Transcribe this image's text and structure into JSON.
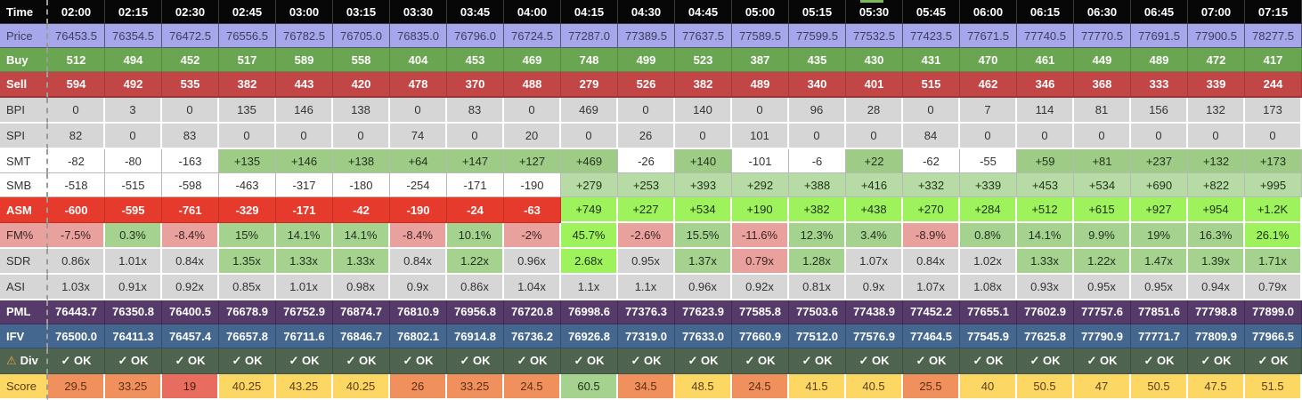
{
  "palette": {
    "header_bg": "#070707",
    "price_bg": "#a6a6ea",
    "buy_bg": "#6aa551",
    "sell_bg": "#c24646",
    "neutral_gray": "#d6d6d6",
    "green_smt": "#9ecb86",
    "green_smb": "#b7dba4",
    "green_mid": "#a5d28f",
    "green_bright": "#9ef35c",
    "pink_negative": "#e9a19e",
    "asm_red": "#e53a2c",
    "pml_purple": "#553a6a",
    "ifv_blue": "#44678f",
    "div_green": "#4e6350",
    "score_yellow": "#fcd763",
    "score_orange": "#f0915d",
    "score_salmon": "#e96d5e",
    "warning_icon": "#e8a33d",
    "top_marker": "#7cb95a"
  },
  "table": {
    "corner_label": "Time",
    "columns": [
      "02:00",
      "02:15",
      "02:30",
      "02:45",
      "03:00",
      "03:15",
      "03:30",
      "03:45",
      "04:00",
      "04:15",
      "04:30",
      "04:45",
      "05:00",
      "05:15",
      "05:30",
      "05:45",
      "06:00",
      "06:15",
      "06:30",
      "06:45",
      "07:00",
      "07:15"
    ],
    "rows": [
      {
        "id": "price",
        "label": "Price",
        "label_class": "price",
        "cell_class": "price",
        "cells": [
          "76453.5",
          "76354.5",
          "76472.5",
          "76556.5",
          "76782.5",
          "76705.0",
          "76835.0",
          "76796.0",
          "76724.5",
          "77287.0",
          "77389.5",
          "77637.5",
          "77589.5",
          "77599.5",
          "77532.5",
          "77423.5",
          "77671.5",
          "77740.5",
          "77770.5",
          "77691.5",
          "77900.5",
          "78277.5"
        ]
      },
      {
        "id": "buy",
        "label": "Buy",
        "label_class": "buy",
        "cell_class": "buy",
        "cells": [
          "512",
          "494",
          "452",
          "517",
          "589",
          "558",
          "404",
          "453",
          "469",
          "748",
          "499",
          "523",
          "387",
          "435",
          "430",
          "431",
          "470",
          "461",
          "449",
          "489",
          "472",
          "417"
        ]
      },
      {
        "id": "sell",
        "label": "Sell",
        "label_class": "sell",
        "cell_class": "sell",
        "cells": [
          "594",
          "492",
          "535",
          "382",
          "443",
          "420",
          "478",
          "370",
          "488",
          "279",
          "526",
          "382",
          "489",
          "340",
          "401",
          "515",
          "462",
          "346",
          "368",
          "333",
          "339",
          "244"
        ]
      },
      {
        "id": "bpi",
        "label": "BPI",
        "label_class": "gray",
        "cell_class": "gray",
        "cells": [
          "0",
          "3",
          "0",
          "135",
          "146",
          "138",
          "0",
          "83",
          "0",
          "469",
          "0",
          "140",
          "0",
          "96",
          "28",
          "0",
          "7",
          "114",
          "81",
          "156",
          "132",
          "173"
        ]
      },
      {
        "id": "spi",
        "label": "SPI",
        "label_class": "gray",
        "cell_class": "gray",
        "cells": [
          "82",
          "0",
          "83",
          "0",
          "0",
          "0",
          "74",
          "0",
          "20",
          "0",
          "26",
          "0",
          "101",
          "0",
          "0",
          "84",
          "0",
          "0",
          "0",
          "0",
          "0",
          "0"
        ]
      },
      {
        "id": "smt",
        "label": "SMT",
        "label_class": "white",
        "cell_class": "white",
        "cells": [
          "-82",
          "-80",
          "-163",
          "+135",
          "+146",
          "+138",
          "+64",
          "+147",
          "+127",
          "+469",
          "-26",
          "+140",
          "-101",
          "-6",
          "+22",
          "-62",
          "-55",
          "+59",
          "+81",
          "+237",
          "+132",
          "+173"
        ],
        "cell_classes": [
          "white",
          "white",
          "white",
          "g1",
          "g1",
          "g1",
          "g1",
          "g1",
          "g1",
          "g1",
          "white",
          "g1",
          "white",
          "white",
          "g1",
          "white",
          "white",
          "g1",
          "g1",
          "g1",
          "g1",
          "g1"
        ]
      },
      {
        "id": "smb",
        "label": "SMB",
        "label_class": "white",
        "cell_class": "white",
        "cells": [
          "-518",
          "-515",
          "-598",
          "-463",
          "-317",
          "-180",
          "-254",
          "-171",
          "-190",
          "+279",
          "+253",
          "+393",
          "+292",
          "+388",
          "+416",
          "+332",
          "+339",
          "+453",
          "+534",
          "+690",
          "+822",
          "+995"
        ],
        "cell_classes": [
          "white",
          "white",
          "white",
          "white",
          "white",
          "white",
          "white",
          "white",
          "white",
          "g2",
          "g2",
          "g2",
          "g2",
          "g2",
          "g2",
          "g2",
          "g2",
          "g2",
          "g2",
          "g2",
          "g2",
          "g2"
        ]
      },
      {
        "id": "asm",
        "label": "ASM",
        "label_class": "red",
        "cell_class": "red",
        "cells": [
          "-600",
          "-595",
          "-761",
          "-329",
          "-171",
          "-42",
          "-190",
          "-24",
          "-63",
          "+749",
          "+227",
          "+534",
          "+190",
          "+382",
          "+438",
          "+270",
          "+284",
          "+512",
          "+615",
          "+927",
          "+954",
          "+1.2K"
        ],
        "cell_classes": [
          "red",
          "red",
          "red",
          "red",
          "red",
          "red",
          "red",
          "red",
          "red",
          "bright",
          "bright",
          "bright",
          "bright",
          "bright",
          "bright",
          "bright",
          "bright",
          "bright",
          "bright",
          "bright",
          "bright",
          "bright"
        ]
      },
      {
        "id": "fmpct",
        "label": "FM%",
        "label_class": "pink",
        "cell_class": "g3",
        "cells": [
          "-7.5%",
          "0.3%",
          "-8.4%",
          "15%",
          "14.1%",
          "14.1%",
          "-8.4%",
          "10.1%",
          "-2%",
          "45.7%",
          "-2.6%",
          "15.5%",
          "-11.6%",
          "12.3%",
          "3.4%",
          "-8.9%",
          "0.8%",
          "14.1%",
          "9.9%",
          "19%",
          "16.3%",
          "26.1%"
        ],
        "cell_classes": [
          "pink",
          "g3",
          "pink",
          "g3",
          "g3",
          "g3",
          "pink",
          "g3",
          "pink",
          "bright",
          "pink",
          "g3",
          "pink",
          "g3",
          "g3",
          "pink",
          "g3",
          "g3",
          "g3",
          "g3",
          "g3",
          "bright"
        ]
      },
      {
        "id": "sdr",
        "label": "SDR",
        "label_class": "gray",
        "cell_class": "gray",
        "cells": [
          "0.86x",
          "1.01x",
          "0.84x",
          "1.35x",
          "1.33x",
          "1.33x",
          "0.84x",
          "1.22x",
          "0.96x",
          "2.68x",
          "0.95x",
          "1.37x",
          "0.79x",
          "1.28x",
          "1.07x",
          "0.84x",
          "1.02x",
          "1.33x",
          "1.22x",
          "1.47x",
          "1.39x",
          "1.71x"
        ],
        "cell_classes": [
          "gray",
          "gray",
          "gray",
          "g3",
          "g3",
          "g3",
          "gray",
          "g3",
          "gray",
          "bright",
          "gray",
          "g3",
          "pink",
          "g3",
          "gray",
          "gray",
          "gray",
          "g3",
          "g3",
          "g3",
          "g3",
          "g3"
        ]
      },
      {
        "id": "asi",
        "label": "ASI",
        "label_class": "gray",
        "cell_class": "gray",
        "cells": [
          "1.03x",
          "0.91x",
          "0.92x",
          "0.85x",
          "1.01x",
          "0.98x",
          "0.9x",
          "0.86x",
          "1.04x",
          "1.1x",
          "1.1x",
          "0.96x",
          "0.92x",
          "0.81x",
          "0.9x",
          "1.07x",
          "1.08x",
          "0.93x",
          "0.95x",
          "0.95x",
          "0.94x",
          "0.79x"
        ]
      },
      {
        "id": "pml",
        "label": "PML",
        "label_class": "purple",
        "cell_class": "purple",
        "cells": [
          "76443.7",
          "76350.8",
          "76400.5",
          "76678.9",
          "76752.9",
          "76874.7",
          "76810.9",
          "76956.8",
          "76720.8",
          "76998.6",
          "77376.3",
          "77623.9",
          "77585.8",
          "77503.6",
          "77438.9",
          "77452.2",
          "77655.1",
          "77602.9",
          "77757.6",
          "77851.6",
          "77798.8",
          "77899.0"
        ]
      },
      {
        "id": "ifv",
        "label": "IFV",
        "label_class": "blue",
        "cell_class": "blue",
        "cells": [
          "76500.0",
          "76411.3",
          "76457.4",
          "76657.8",
          "76711.6",
          "76846.7",
          "76802.1",
          "76914.8",
          "76736.2",
          "76926.8",
          "77319.0",
          "77633.0",
          "77660.9",
          "77512.0",
          "77576.9",
          "77464.5",
          "77545.9",
          "77625.8",
          "77790.9",
          "77771.7",
          "77809.9",
          "77966.5"
        ]
      },
      {
        "id": "div",
        "label": "Div",
        "label_icon": "⚠",
        "label_class": "div",
        "cell_class": "div",
        "cells": [
          "✓ OK",
          "✓ OK",
          "✓ OK",
          "✓ OK",
          "✓ OK",
          "✓ OK",
          "✓ OK",
          "✓ OK",
          "✓ OK",
          "✓ OK",
          "✓ OK",
          "✓ OK",
          "✓ OK",
          "✓ OK",
          "✓ OK",
          "✓ OK",
          "✓ OK",
          "✓ OK",
          "✓ OK",
          "✓ OK",
          "✓ OK",
          "✓ OK"
        ]
      },
      {
        "id": "score",
        "label": "Score",
        "label_class": "yellow",
        "cell_class": "yellow",
        "cells": [
          "29.5",
          "33.25",
          "19",
          "40.25",
          "43.25",
          "40.25",
          "26",
          "33.25",
          "24.5",
          "60.5",
          "34.5",
          "48.5",
          "24.5",
          "41.5",
          "40.5",
          "25.5",
          "40",
          "50.5",
          "47",
          "50.5",
          "47.5",
          "51.5"
        ],
        "cell_classes": [
          "orange",
          "orange",
          "salmon",
          "yellow",
          "yellow",
          "yellow",
          "orange",
          "orange",
          "orange",
          "g3",
          "orange",
          "yellow",
          "orange",
          "yellow",
          "yellow",
          "orange",
          "yellow",
          "yellow",
          "yellow",
          "yellow",
          "yellow",
          "yellow"
        ]
      }
    ]
  }
}
